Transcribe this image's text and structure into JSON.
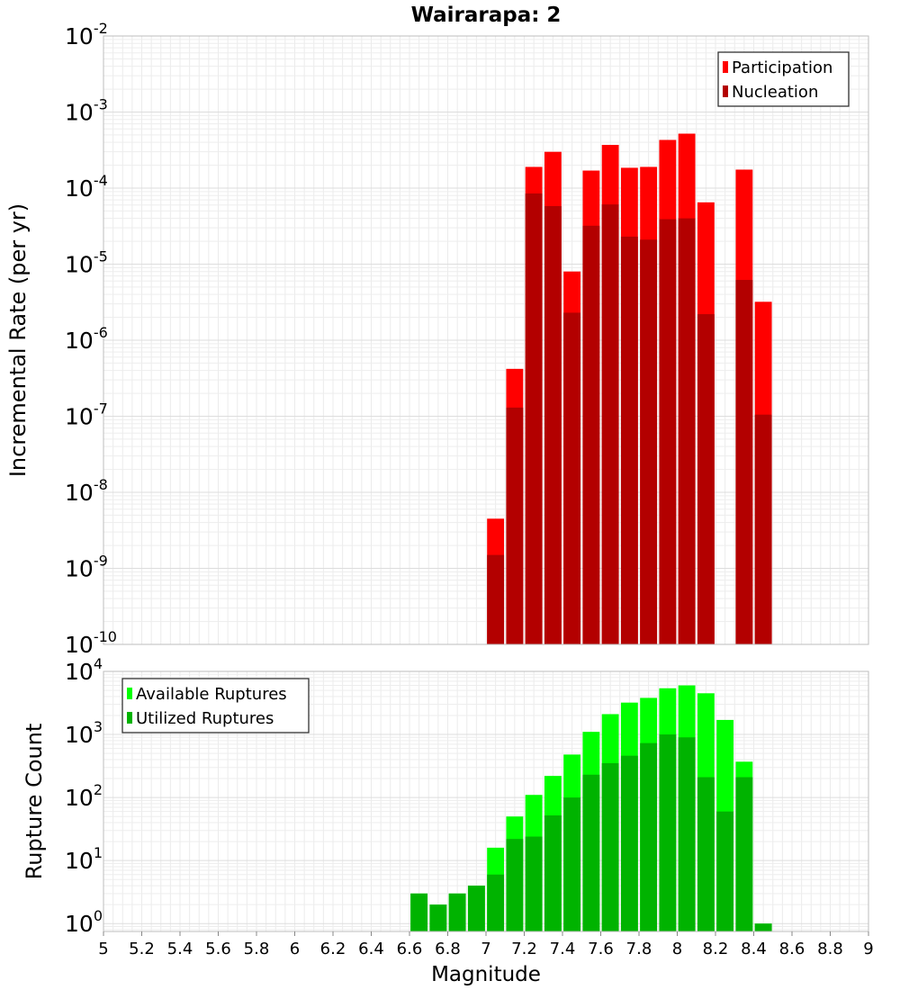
{
  "chart_data": [
    {
      "type": "bar",
      "title": "Wairarapa: 2",
      "xlabel": "",
      "ylabel": "Incremental Rate (per yr)",
      "yscale": "log",
      "ylim": [
        1e-10,
        0.01
      ],
      "xlim": [
        5,
        9
      ],
      "y_tick_exponents": [
        -10,
        -9,
        -8,
        -7,
        -6,
        -5,
        -4,
        -3,
        -2
      ],
      "grid": true,
      "legend": "top-right",
      "bin_width": 0.1,
      "x": [
        7.05,
        7.15,
        7.25,
        7.35,
        7.45,
        7.55,
        7.65,
        7.75,
        7.85,
        7.95,
        8.05,
        8.15,
        8.35,
        8.45
      ],
      "series": [
        {
          "name": "Participation",
          "color": "#ff0000",
          "values": [
            4.5e-09,
            4.2e-07,
            0.00019,
            0.0003,
            8e-06,
            0.00017,
            0.00037,
            0.000185,
            0.00019,
            0.00043,
            0.00052,
            6.5e-05,
            0.000175,
            3.2e-06
          ]
        },
        {
          "name": "Nucleation",
          "color": "#b30000",
          "values": [
            1.5e-09,
            1.3e-07,
            8.5e-05,
            5.8e-05,
            2.3e-06,
            3.2e-05,
            6.1e-05,
            2.3e-05,
            2.1e-05,
            3.9e-05,
            4e-05,
            2.2e-06,
            6.2e-06,
            1.05e-07
          ]
        }
      ]
    },
    {
      "type": "bar",
      "title": "",
      "xlabel": "Magnitude",
      "ylabel": "Rupture Count",
      "yscale": "log",
      "ylim": [
        0.75,
        10000
      ],
      "xlim": [
        5,
        9
      ],
      "x_ticks": [
        "5",
        "5.2",
        "5.4",
        "5.6",
        "5.8",
        "6",
        "6.2",
        "6.4",
        "6.6",
        "6.8",
        "7",
        "7.2",
        "7.4",
        "7.6",
        "7.8",
        "8",
        "8.2",
        "8.4",
        "8.6",
        "8.8",
        "9"
      ],
      "y_tick_exponents": [
        0,
        1,
        2,
        3,
        4
      ],
      "grid": true,
      "legend": "top-left",
      "bin_width": 0.1,
      "x": [
        6.65,
        6.75,
        6.85,
        6.95,
        7.05,
        7.15,
        7.25,
        7.35,
        7.45,
        7.55,
        7.65,
        7.75,
        7.85,
        7.95,
        8.05,
        8.15,
        8.25,
        8.35,
        8.45
      ],
      "series": [
        {
          "name": "Available Ruptures",
          "color": "#00ff00",
          "values": [
            3,
            2,
            3,
            4,
            16,
            50,
            110,
            220,
            480,
            1100,
            2100,
            3200,
            3800,
            5400,
            6000,
            4500,
            1700,
            370,
            1
          ]
        },
        {
          "name": "Utilized Ruptures",
          "color": "#00b300",
          "values": [
            3,
            2,
            3,
            4,
            6,
            22,
            24,
            52,
            100,
            230,
            350,
            460,
            730,
            1000,
            900,
            210,
            60,
            210,
            1
          ]
        }
      ]
    }
  ]
}
